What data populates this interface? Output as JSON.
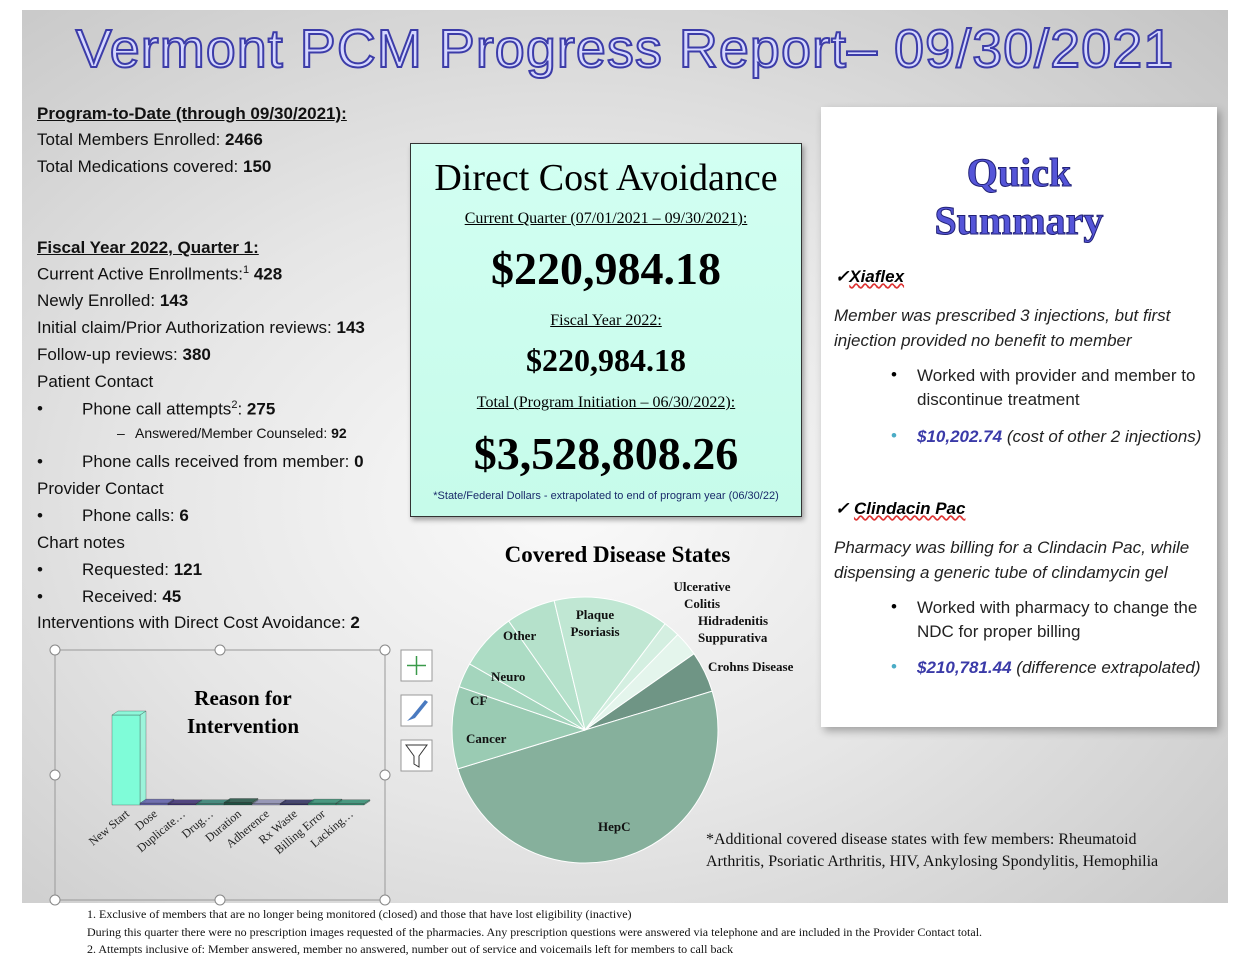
{
  "title": "Vermont PCM Progress Report– 09/30/2021",
  "program": {
    "heading": "Program-to-Date (through 09/30/2021):",
    "items": [
      {
        "label": "Total Members Enrolled:",
        "value": "2466"
      },
      {
        "label": "Total Medications covered:",
        "value": "150"
      }
    ]
  },
  "fiscal": {
    "heading": "Fiscal Year 2022, Quarter 1:",
    "lines": [
      {
        "label": "Current Active Enrollments:",
        "value": "428",
        "note": "1"
      },
      {
        "label": "Newly Enrolled:",
        "value": "143"
      },
      {
        "label": "Initial claim/Prior Authorization reviews:",
        "value": "143"
      },
      {
        "label": "Follow-up reviews:",
        "value": "380"
      },
      {
        "label": "Patient Contact"
      },
      {
        "label": "Phone call attempts",
        "note": "2",
        "label_end": ":",
        "value": "275"
      },
      {
        "label": "Answered/Member Counseled:",
        "value": "92"
      },
      {
        "label": "Phone calls received from member:",
        "value": "0"
      },
      {
        "label": "Provider Contact"
      },
      {
        "label": "Phone calls:",
        "value": "6"
      },
      {
        "label": "Chart notes"
      },
      {
        "label": "Requested:",
        "value": "121"
      },
      {
        "label": "Received:",
        "value": "45"
      },
      {
        "label": "Interventions with Direct Cost Avoidance:",
        "value": "2"
      }
    ]
  },
  "cost": {
    "heading": "Direct Cost Avoidance",
    "quarter_label": "Current Quarter (07/01/2021 – 09/30/2021):",
    "quarter_value": "$220,984.18",
    "fy_label": "Fiscal Year 2022:",
    "fy_value": "$220,984.18",
    "total_label": "Total (Program Initiation – 06/30/2022):",
    "total_value": "$3,528,808.26",
    "footnote": "*State/Federal Dollars - extrapolated to end of program year (06/30/22)"
  },
  "summary": {
    "title": "Quick Summary",
    "items": [
      {
        "name": "Xiaflex",
        "description": "Member was prescribed 3 injections, but first injection provided no benefit to member",
        "action": "Worked with provider and member to discontinue treatment",
        "amount": "$10,202.74",
        "amount_note": "(cost of other 2 injections)"
      },
      {
        "name": "Clindacin Pac",
        "description": "Pharmacy was billing for a Clindacin Pac, while dispensing a generic tube of clindamycin gel",
        "action": "Worked with pharmacy to change the NDC for proper billing",
        "amount": "$210,781.44",
        "amount_note": "(difference extrapolated)"
      }
    ]
  },
  "chart_data": [
    {
      "type": "bar",
      "title": "Reason for Intervention",
      "categories": [
        "New Start",
        "Dose",
        "Duplicate…",
        "Drug…",
        "Duration",
        "Adherence",
        "Rx Waste",
        "Billing Error",
        "Lacking…"
      ],
      "values": [
        143,
        3,
        2,
        2,
        4,
        2,
        2,
        3,
        2
      ],
      "colors": [
        "#7ffcd8",
        "#5c5ca8",
        "#3a2b70",
        "#2f7d6e",
        "#1f4f40",
        "#8a8aae",
        "#2a2a5c",
        "#2e8b6e",
        "#2e8b6e"
      ]
    },
    {
      "type": "pie",
      "title": "Covered Disease States",
      "categories": [
        "Crohns Disease",
        "HepC",
        "Cancer",
        "CF",
        "Neuro",
        "Other",
        "Plaque Psoriasis",
        "Ulcerative Colitis",
        "Hidradenitis Suppurativa"
      ],
      "values": [
        5,
        50,
        10,
        3,
        7,
        6,
        14,
        2,
        3
      ],
      "colors": [
        "#6f9585",
        "#86b09c",
        "#9acbb3",
        "#a4d5bd",
        "#acdcc4",
        "#b5e1cb",
        "#c0e7d3",
        "#d4efe1",
        "#e4f5ec"
      ],
      "note": "*Additional covered disease states with few members: Rheumatoid Arthritis, Psoriatic Arthritis, HIV, Ankylosing Spondylitis, Hemophilia"
    }
  ],
  "footnotes": [
    "1. Exclusive of members that are no longer being monitored (closed) and those that have lost eligibility (inactive)",
    "During this quarter there were no prescription images requested of the pharmacies.  Any prescription questions were answered via telephone and are included in the Provider Contact total.",
    "2. Attempts inclusive of: Member answered, member no answered, number out of service and voicemails left for members to call back"
  ]
}
